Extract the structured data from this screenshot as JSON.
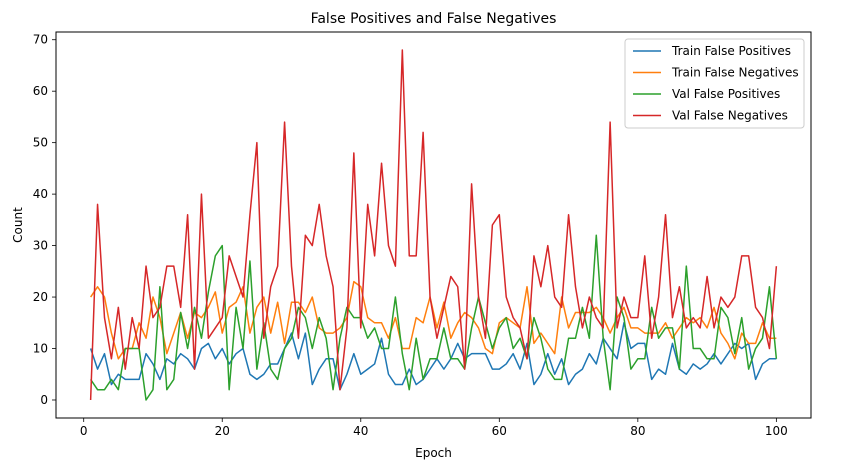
{
  "chart_data": {
    "type": "line",
    "title": "False Positives and False Negatives",
    "xlabel": "Epoch",
    "ylabel": "Count",
    "xlim": [
      -4,
      105
    ],
    "ylim": [
      -3.5,
      71.5
    ],
    "xticks": [
      0,
      20,
      40,
      60,
      80,
      100
    ],
    "yticks": [
      0,
      10,
      20,
      30,
      40,
      50,
      60,
      70
    ],
    "grid": false,
    "legend_position": "top-right",
    "x": [
      1,
      2,
      3,
      4,
      5,
      6,
      7,
      8,
      9,
      10,
      11,
      12,
      13,
      14,
      15,
      16,
      17,
      18,
      19,
      20,
      21,
      22,
      23,
      24,
      25,
      26,
      27,
      28,
      29,
      30,
      31,
      32,
      33,
      34,
      35,
      36,
      37,
      38,
      39,
      40,
      41,
      42,
      43,
      44,
      45,
      46,
      47,
      48,
      49,
      50,
      51,
      52,
      53,
      54,
      55,
      56,
      57,
      58,
      59,
      60,
      61,
      62,
      63,
      64,
      65,
      66,
      67,
      68,
      69,
      70,
      71,
      72,
      73,
      74,
      75,
      76,
      77,
      78,
      79,
      80,
      81,
      82,
      83,
      84,
      85,
      86,
      87,
      88,
      89,
      90,
      91,
      92,
      93,
      94,
      95,
      96,
      97,
      98,
      99,
      100
    ],
    "series": [
      {
        "name": "Train False Positives",
        "color": "#1f77b4",
        "values": [
          10,
          6,
          9,
          3,
          5,
          4,
          4,
          4,
          9,
          7,
          4,
          8,
          7,
          9,
          8,
          6,
          10,
          11,
          8,
          10,
          7,
          9,
          10,
          5,
          4,
          5,
          7,
          7,
          10,
          13,
          8,
          13,
          3,
          6,
          8,
          8,
          2,
          5,
          9,
          5,
          6,
          7,
          12,
          5,
          3,
          3,
          6,
          3,
          4,
          6,
          8,
          6,
          8,
          11,
          8,
          9,
          9,
          9,
          6,
          6,
          7,
          9,
          6,
          11,
          3,
          5,
          9,
          5,
          8,
          3,
          5,
          6,
          9,
          7,
          12,
          10,
          8,
          15,
          10,
          11,
          11,
          4,
          6,
          5,
          11,
          6,
          5,
          7,
          6,
          7,
          9,
          7,
          9,
          11,
          10,
          11,
          4,
          7,
          8,
          8
        ]
      },
      {
        "name": "Train False Negatives",
        "color": "#ff7f0e",
        "values": [
          20,
          22,
          20,
          13,
          8,
          10,
          10,
          15,
          12,
          20,
          16,
          9,
          13,
          17,
          12,
          17,
          16,
          18,
          21,
          13,
          18,
          19,
          22,
          13,
          18,
          20,
          13,
          19,
          11,
          19,
          19,
          17,
          20,
          14,
          13,
          13,
          14,
          16,
          23,
          22,
          16,
          15,
          15,
          12,
          16,
          10,
          10,
          16,
          15,
          20,
          14,
          19,
          12,
          15,
          17,
          16,
          14,
          10,
          9,
          15,
          16,
          15,
          14,
          22,
          11,
          13,
          11,
          9,
          20,
          14,
          17,
          17,
          17,
          18,
          16,
          13,
          16,
          18,
          14,
          14,
          13,
          13,
          13,
          15,
          12,
          14,
          16,
          15,
          16,
          14,
          18,
          13,
          11,
          8,
          13,
          11,
          11,
          15,
          12,
          12
        ]
      },
      {
        "name": "Val False Positives",
        "color": "#2ca02c",
        "values": [
          4,
          2,
          2,
          4,
          2,
          10,
          10,
          10,
          0,
          2,
          22,
          2,
          4,
          17,
          10,
          18,
          12,
          21,
          28,
          30,
          2,
          18,
          10,
          27,
          6,
          15,
          6,
          4,
          10,
          12,
          18,
          16,
          10,
          16,
          12,
          2,
          12,
          18,
          16,
          16,
          12,
          14,
          10,
          10,
          20,
          9,
          2,
          12,
          4,
          8,
          8,
          14,
          8,
          8,
          6,
          14,
          20,
          15,
          10,
          14,
          16,
          10,
          12,
          8,
          16,
          12,
          6,
          4,
          4,
          12,
          12,
          18,
          12,
          32,
          12,
          2,
          20,
          16,
          6,
          8,
          8,
          18,
          12,
          14,
          14,
          6,
          26,
          10,
          10,
          8,
          8,
          18,
          16,
          9,
          16,
          6,
          10,
          12,
          22,
          8
        ]
      },
      {
        "name": "Val False Negatives",
        "color": "#d62728",
        "values": [
          0,
          38,
          16,
          8,
          18,
          6,
          16,
          10,
          26,
          16,
          18,
          26,
          26,
          18,
          36,
          6,
          40,
          12,
          14,
          16,
          28,
          24,
          20,
          36,
          50,
          12,
          22,
          26,
          54,
          26,
          12,
          32,
          30,
          38,
          28,
          22,
          2,
          14,
          48,
          14,
          38,
          28,
          46,
          30,
          26,
          68,
          28,
          28,
          52,
          20,
          12,
          18,
          24,
          22,
          6,
          42,
          20,
          12,
          34,
          36,
          20,
          16,
          14,
          8,
          28,
          22,
          30,
          20,
          18,
          36,
          22,
          14,
          20,
          16,
          14,
          54,
          14,
          20,
          16,
          16,
          28,
          12,
          20,
          36,
          16,
          22,
          14,
          16,
          14,
          24,
          14,
          20,
          18,
          20,
          28,
          28,
          18,
          16,
          10,
          26
        ]
      }
    ]
  }
}
